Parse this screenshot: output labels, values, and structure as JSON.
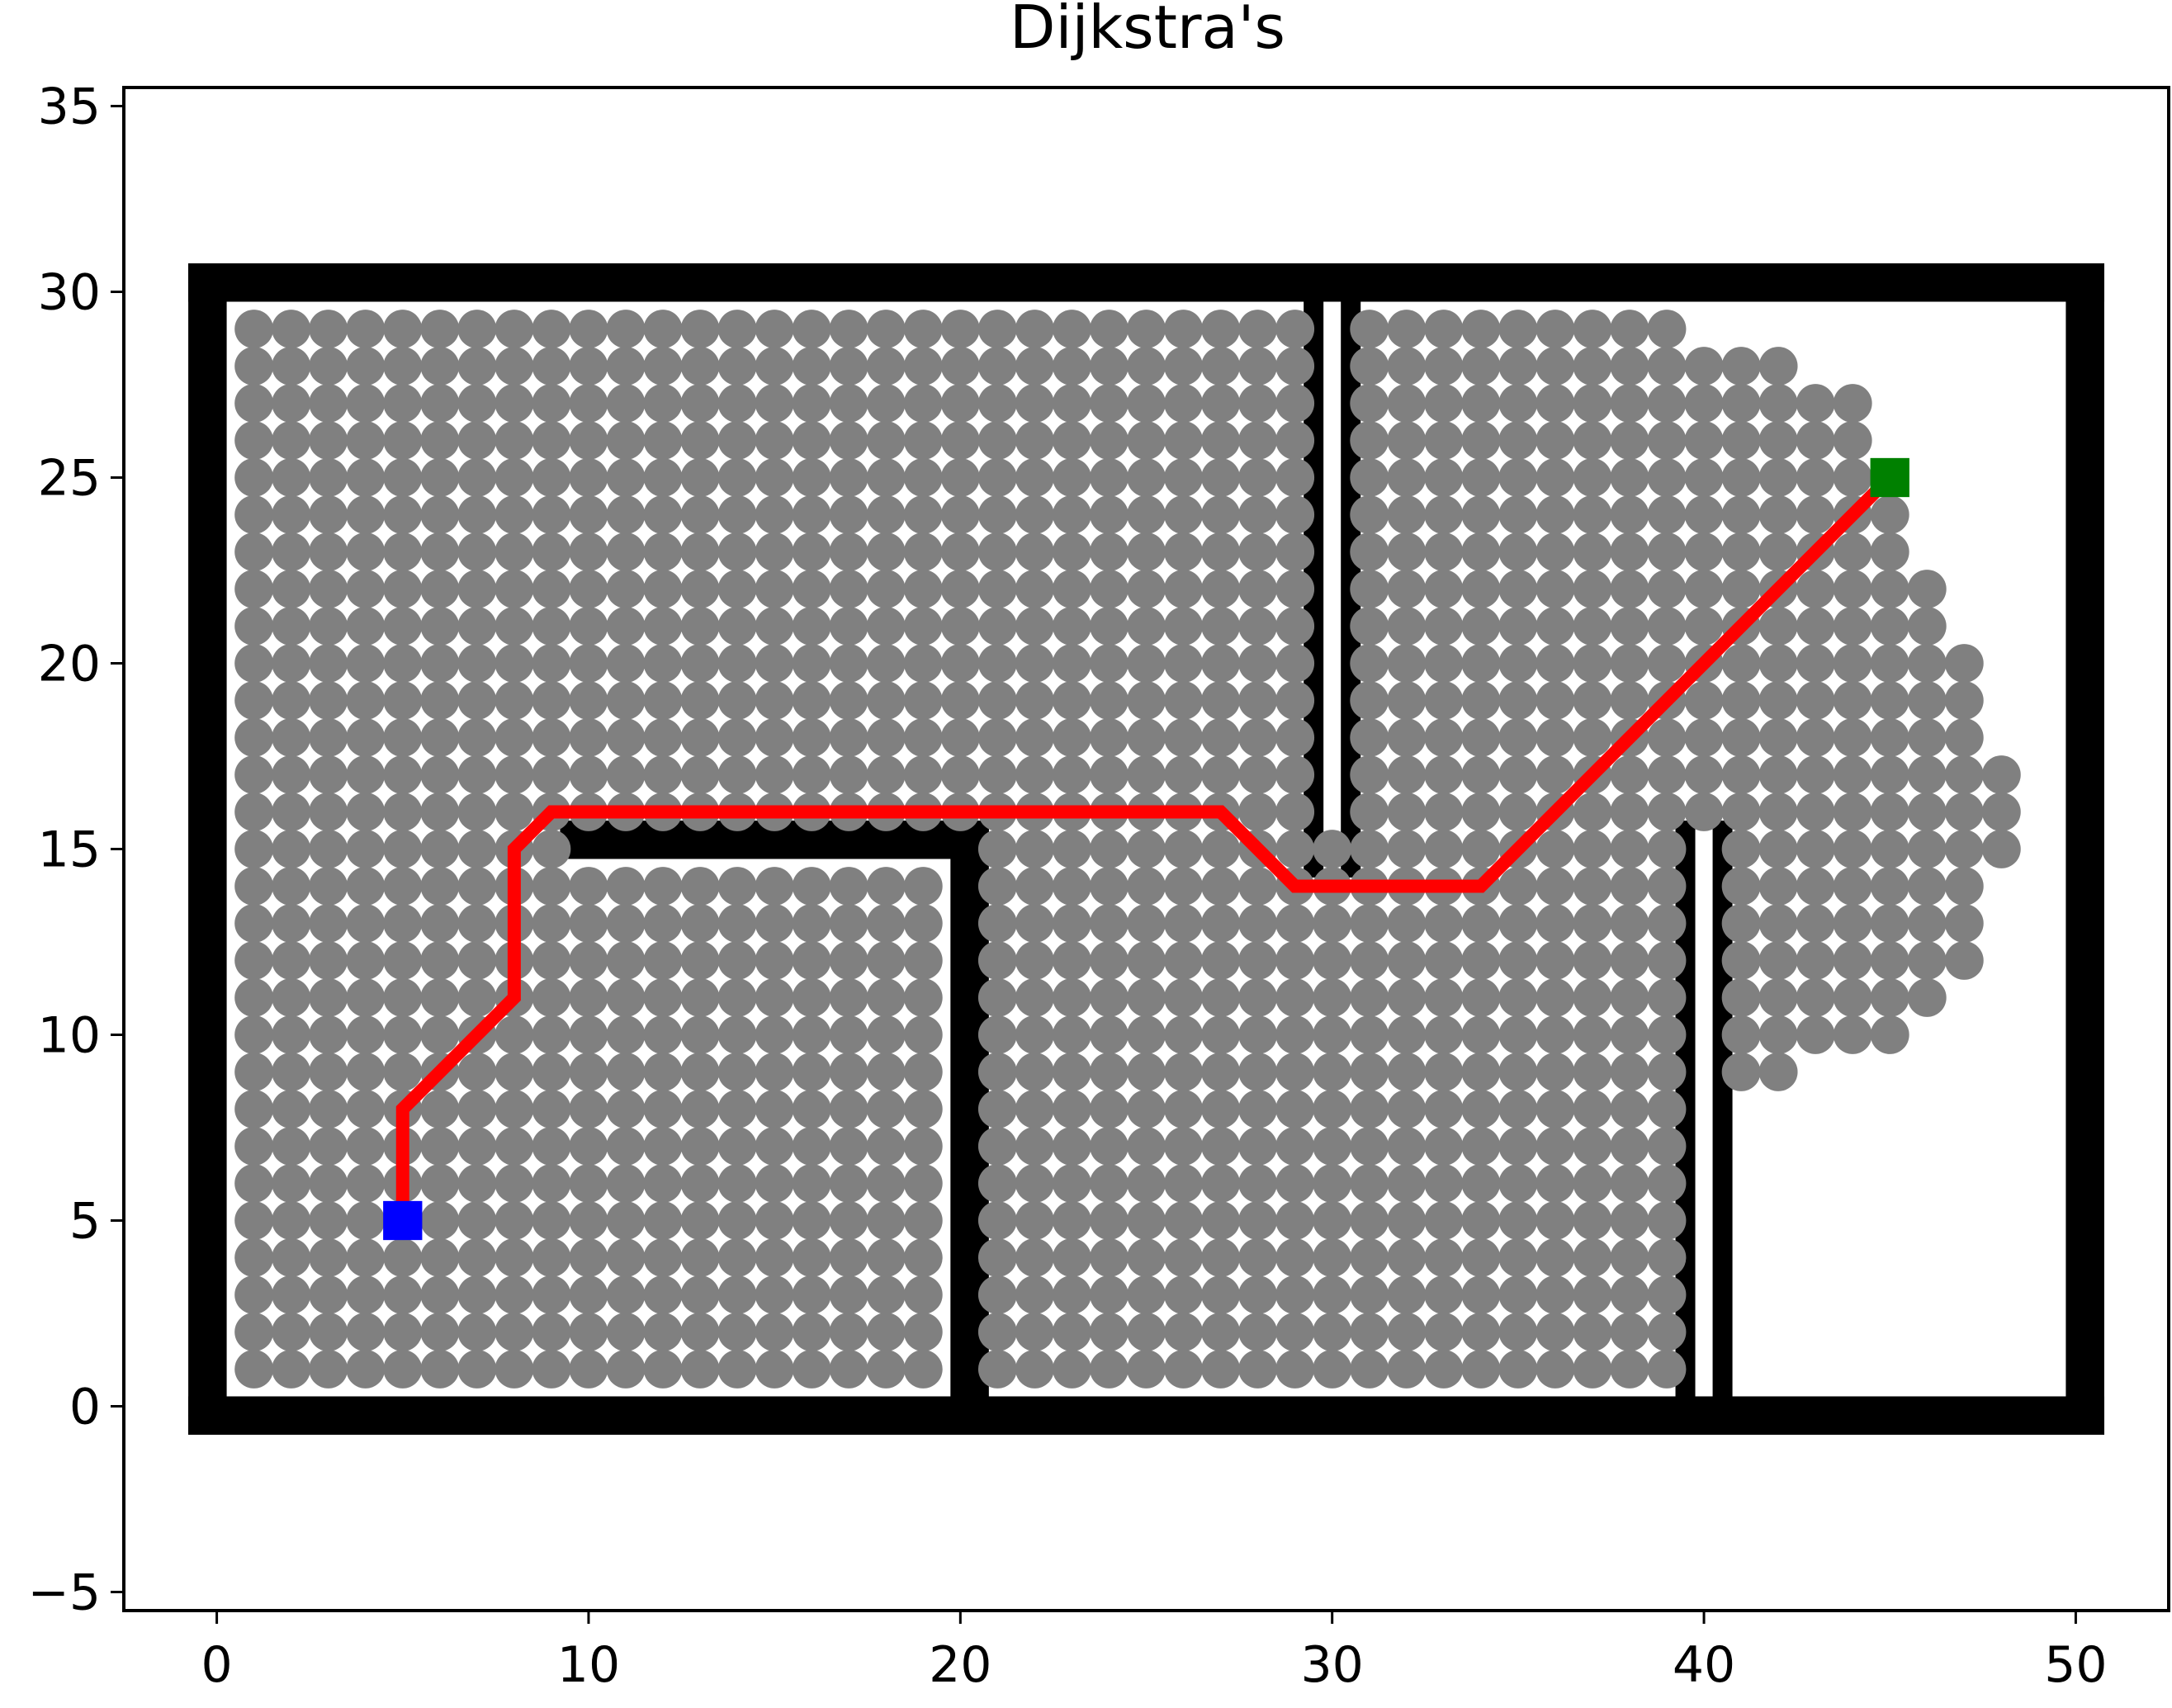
{
  "chart_data": {
    "type": "scatter",
    "title": "Dijkstra's",
    "xlabel": "",
    "ylabel": "",
    "xlim": [
      -2.5,
      52.5
    ],
    "ylim": [
      -5.5,
      35.5
    ],
    "xticks": [
      0,
      10,
      20,
      30,
      40,
      50
    ],
    "yticks": [
      -5,
      0,
      5,
      10,
      15,
      20,
      25,
      30,
      35
    ],
    "xtick_labels": [
      "0",
      "10",
      "20",
      "30",
      "40",
      "50"
    ],
    "ytick_labels": [
      "−5",
      "0",
      "5",
      "10",
      "15",
      "20",
      "25",
      "30",
      "35"
    ],
    "grid": false,
    "colors": {
      "obstacle": "#000000",
      "visited": "#808080",
      "path": "#ff0000",
      "start": "#0000ff",
      "goal": "#008000"
    },
    "obstacles": [
      {
        "x": [
          -0.5,
          50.5
        ],
        "y": [
          -0.5,
          -0.5
        ]
      },
      {
        "x": [
          -0.5,
          50.5
        ],
        "y": [
          0,
          0
        ]
      },
      {
        "x": [
          -0.5,
          50.5
        ],
        "y": [
          30,
          30
        ]
      },
      {
        "x": [
          -0.5,
          50.5
        ],
        "y": [
          30.5,
          30.5
        ]
      },
      {
        "x": [
          -0.5,
          -0.5
        ],
        "y": [
          -0.5,
          30.5
        ]
      },
      {
        "x": [
          0,
          0
        ],
        "y": [
          -0.5,
          30.5
        ]
      },
      {
        "x": [
          50,
          50
        ],
        "y": [
          -0.5,
          30.5
        ]
      },
      {
        "x": [
          50.5,
          50.5
        ],
        "y": [
          -0.5,
          30.5
        ]
      },
      {
        "x": [
          9.5,
          20.5
        ],
        "y": [
          15,
          15
        ]
      },
      {
        "x": [
          9.5,
          20.5
        ],
        "y": [
          15.5,
          15.5
        ]
      },
      {
        "x": [
          20,
          20
        ],
        "y": [
          0,
          15.5
        ]
      },
      {
        "x": [
          20.5,
          20.5
        ],
        "y": [
          0,
          15.5
        ]
      },
      {
        "x": [
          29.5,
          29.5
        ],
        "y": [
          14.5,
          30
        ]
      },
      {
        "x": [
          30.5,
          30.5
        ],
        "y": [
          14.5,
          30
        ]
      },
      {
        "x": [
          39.5,
          39.5
        ],
        "y": [
          0,
          15.5
        ]
      },
      {
        "x": [
          40.5,
          40.5
        ],
        "y": [
          0,
          15.5
        ]
      }
    ],
    "visited_regions": [
      {
        "x_range": [
          1,
          29
        ],
        "y_range": [
          16,
          29
        ]
      },
      {
        "x_range": [
          1,
          9
        ],
        "y_range": [
          1,
          15
        ]
      },
      {
        "x_range": [
          10,
          19
        ],
        "y_range": [
          1,
          14
        ]
      },
      {
        "x_range": [
          21,
          39
        ],
        "y_range": [
          1,
          15
        ]
      },
      {
        "x_range": [
          31,
          39
        ],
        "y_range": [
          16,
          29
        ]
      }
    ],
    "visited_frontier_rows": [
      {
        "y": 28,
        "x_range": [
          40,
          42
        ]
      },
      {
        "y": 27,
        "x_range": [
          40,
          44
        ]
      },
      {
        "y": 26,
        "x_range": [
          40,
          44
        ]
      },
      {
        "y": 25,
        "x_range": [
          40,
          44
        ]
      },
      {
        "y": 24,
        "x_range": [
          40,
          45
        ]
      },
      {
        "y": 23,
        "x_range": [
          40,
          45
        ]
      },
      {
        "y": 22,
        "x_range": [
          40,
          46
        ]
      },
      {
        "y": 21,
        "x_range": [
          40,
          46
        ]
      },
      {
        "y": 20,
        "x_range": [
          40,
          47
        ]
      },
      {
        "y": 19,
        "x_range": [
          40,
          47
        ]
      },
      {
        "y": 18,
        "x_range": [
          40,
          47
        ]
      },
      {
        "y": 17,
        "x_range": [
          40,
          48
        ]
      },
      {
        "y": 16,
        "x_range": [
          40,
          48
        ]
      },
      {
        "y": 15,
        "x_range": [
          41,
          48
        ]
      },
      {
        "y": 14,
        "x_range": [
          41,
          47
        ]
      },
      {
        "y": 13,
        "x_range": [
          41,
          47
        ]
      },
      {
        "y": 12,
        "x_range": [
          41,
          47
        ]
      },
      {
        "y": 11,
        "x_range": [
          41,
          46
        ]
      },
      {
        "y": 10,
        "x_range": [
          41,
          45
        ]
      },
      {
        "y": 9,
        "x_range": [
          41,
          42
        ]
      }
    ],
    "path": {
      "x": [
        5,
        5,
        8,
        8,
        9,
        27,
        29,
        34,
        45
      ],
      "y": [
        5,
        8,
        11,
        15,
        16,
        16,
        14,
        14,
        25
      ]
    },
    "start": {
      "x": 5,
      "y": 5
    },
    "goal": {
      "x": 45,
      "y": 25
    }
  }
}
